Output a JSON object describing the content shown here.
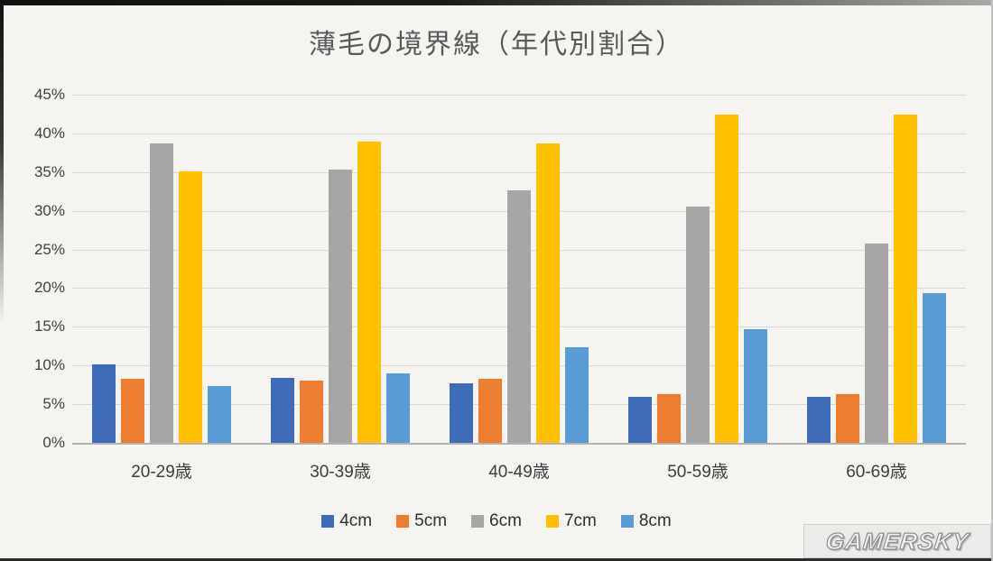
{
  "title": "薄毛の境界線（年代別割合）",
  "watermark": "GAMERSKY",
  "chart_data": {
    "type": "bar",
    "title": "薄毛の境界線（年代別割合）",
    "categories": [
      "20-29歳",
      "30-39歳",
      "40-49歳",
      "50-59歳",
      "60-69歳"
    ],
    "series": [
      {
        "name": "4cm",
        "color": "#3E6CB9",
        "values": [
          10.1,
          8.4,
          7.7,
          5.9,
          5.9
        ]
      },
      {
        "name": "5cm",
        "color": "#ED7D31",
        "values": [
          8.3,
          8.1,
          8.3,
          6.3,
          6.3
        ]
      },
      {
        "name": "6cm",
        "color": "#A6A6A6",
        "values": [
          38.7,
          35.3,
          32.6,
          30.6,
          25.8
        ]
      },
      {
        "name": "7cm",
        "color": "#FFC000",
        "values": [
          35.1,
          39.0,
          38.7,
          42.4,
          42.4
        ]
      },
      {
        "name": "8cm",
        "color": "#5B9BD5",
        "values": [
          7.4,
          9.0,
          12.4,
          14.7,
          19.3
        ]
      }
    ],
    "xlabel": "",
    "ylabel": "",
    "ylim": [
      0,
      45
    ],
    "ytick_step": 5,
    "ytick_suffix": "%",
    "grid": true,
    "legend_position": "bottom"
  }
}
